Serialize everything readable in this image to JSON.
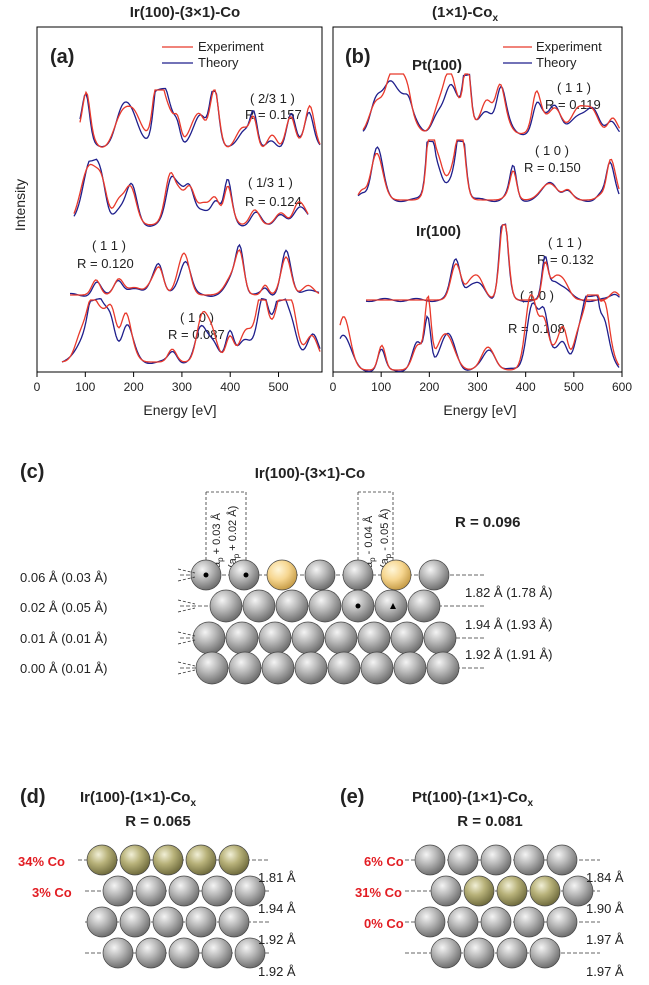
{
  "panel_a": {
    "title": "Ir(100)-(3×1)-Co",
    "letter": "(a)",
    "legend": [
      "Experiment",
      "Theory"
    ],
    "ylabel": "Intensity",
    "xlabel": "Energy [eV]",
    "beams": [
      {
        "label": "( 2/3 1 )",
        "r": "R = 0.157"
      },
      {
        "label": "( 1/3 1 )",
        "r": "R = 0.124"
      },
      {
        "label": "( 1 1 )",
        "r": "R = 0.120"
      },
      {
        "label": "( 1 0 )",
        "r": "R = 0.087"
      }
    ]
  },
  "panel_b": {
    "title_main": "(1×1)-Co",
    "title_sub": "x",
    "letter": "(b)",
    "legend": [
      "Experiment",
      "Theory"
    ],
    "xlabel": "Energy [eV]",
    "pt_label": "Pt(100)",
    "ir_label": "Ir(100)",
    "beams": [
      {
        "label": "( 1 1 )",
        "r": "R = 0.119"
      },
      {
        "label": "( 1 0 )",
        "r": "R = 0.150"
      },
      {
        "label": "( 1 1 )",
        "r": "R = 0.132"
      },
      {
        "label": "( 1 0 )",
        "r": "R = 0.108"
      }
    ]
  },
  "panel_c": {
    "letter": "(c)",
    "title": "Ir(100)-(3×1)-Co",
    "r": "R = 0.096",
    "shift_left": "a",
    "shift_left_sub": "p",
    "shift_left_a": " + 0.03 Å",
    "shift_left_b": "(a",
    "shift_left_b2": " + 0.02 Å)",
    "shift_right_a": " - 0.04 Å",
    "shift_right_b2": " - 0.05 Å)",
    "buckling": [
      "0.06 Å (0.03 Å)",
      "0.02 Å (0.05 Å)",
      "0.01 Å (0.01 Å)",
      "0.00 Å (0.01 Å)"
    ],
    "spacing": [
      "1.82 Å (1.78 Å)",
      "1.94 Å (1.93 Å)",
      "1.92 Å (1.91 Å)"
    ]
  },
  "panel_d": {
    "letter": "(d)",
    "title_main": "Ir(100)-(1×1)-Co",
    "title_sub": "x",
    "r": "R = 0.065",
    "co": [
      "34% Co",
      "3% Co"
    ],
    "spacing": [
      "1.81 Å",
      "1.94 Å",
      "1.92 Å",
      "1.92 Å"
    ]
  },
  "panel_e": {
    "letter": "(e)",
    "title_main": "Pt(100)-(1×1)-Co",
    "title_sub": "x",
    "r": "R = 0.081",
    "co": [
      "6% Co",
      "31% Co",
      "0% Co"
    ],
    "spacing": [
      "1.84 Å",
      "1.90 Å",
      "1.97 Å",
      "1.97 Å"
    ]
  },
  "colors": {
    "experiment": "#e8392b",
    "theory": "#1f1f8c",
    "co_label": "#e21d23"
  },
  "chart_data": [
    {
      "type": "line",
      "title": "Ir(100)-(3×1)-Co",
      "xlabel": "Energy [eV]",
      "ylabel": "Intensity",
      "xlim": [
        0,
        590
      ],
      "xticks": [
        0,
        100,
        200,
        300,
        400,
        500
      ],
      "series": [
        {
          "name": "Experiment"
        },
        {
          "name": "Theory"
        }
      ]
    },
    {
      "type": "line",
      "title": "(1×1)-Co",
      "xlabel": "Energy [eV]",
      "xlim": [
        0,
        600
      ],
      "xticks": [
        0,
        100,
        200,
        300,
        400,
        500,
        600
      ],
      "series": [
        {
          "name": "Experiment"
        },
        {
          "name": "Theory"
        }
      ]
    }
  ]
}
